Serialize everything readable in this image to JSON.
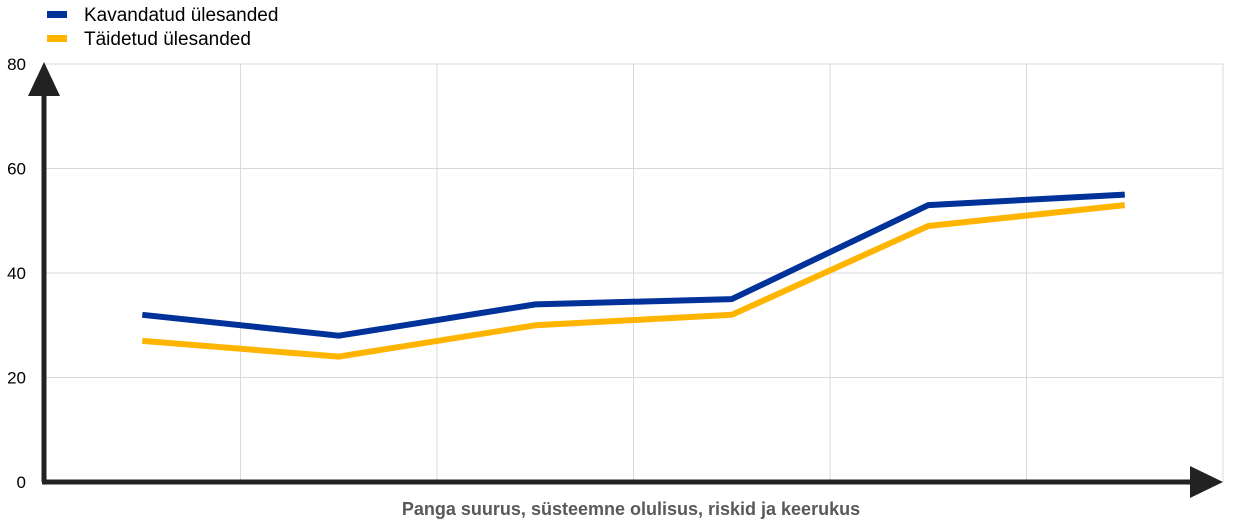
{
  "chart_data": {
    "type": "line",
    "categories": [
      "1",
      "2",
      "3",
      "4",
      "5",
      "6"
    ],
    "series": [
      {
        "name": "Kavandatud ülesanded",
        "values": [
          32,
          28,
          34,
          35,
          53,
          55
        ]
      },
      {
        "name": "Täidetud ülesanded",
        "values": [
          27,
          24,
          30,
          32,
          49,
          53
        ]
      }
    ],
    "title": "",
    "xlabel": "Panga suurus, süsteemne olulisus, riskid ja keerukus",
    "ylabel": "",
    "ylim": [
      0,
      80
    ],
    "yticks": [
      "0",
      "20",
      "40",
      "60",
      "80"
    ],
    "x_tick_labels_shown": false,
    "grid": true,
    "legend_position": "top-left",
    "colors": {
      "series": [
        "#003299",
        "#FFB400"
      ],
      "grid": "#d9d9d9",
      "axis": "#222222"
    }
  }
}
